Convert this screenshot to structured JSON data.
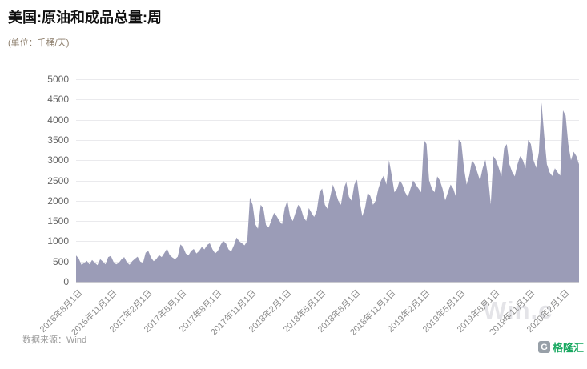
{
  "header": {
    "title": "美国:原油和成品总量:周",
    "unit": "(单位：千桶/天)"
  },
  "footer": {
    "source": "数据来源：Wind",
    "background_watermark": "Win.c",
    "logo_letter": "G",
    "logo_text": "格隆汇"
  },
  "colors": {
    "area": "#9b9cb7",
    "grid": "#eaeaed",
    "axis": "#c9c9cf",
    "logo_green": "#18a860"
  },
  "chart_data": {
    "type": "area",
    "title": "美国:原油和成品总量:周",
    "ylabel": "千桶/天",
    "ylim": [
      0,
      5000
    ],
    "grid": true,
    "y_ticks": [
      "5000",
      "4500",
      "4000",
      "3500",
      "3000",
      "2500",
      "2000",
      "1500",
      "1000",
      "500",
      "0"
    ],
    "x_tick_labels": [
      "2016年8月1日",
      "2016年11月1日",
      "2017年2月1日",
      "2017年5月1日",
      "2017年8月1日",
      "2017年11月1日",
      "2018年2月1日",
      "2018年5月1日",
      "2018年8月1日",
      "2018年11月1日",
      "2019年2月1日",
      "2019年5月1日",
      "2019年8月1日",
      "2019年11月1日",
      "2020年2月1日"
    ],
    "x_tick_interval_weeks": 13,
    "x_start": "2016-08-01",
    "x_step": "weekly",
    "values": [
      650,
      580,
      420,
      460,
      520,
      430,
      540,
      470,
      410,
      560,
      500,
      430,
      610,
      640,
      490,
      430,
      470,
      560,
      610,
      480,
      420,
      510,
      570,
      620,
      500,
      460,
      720,
      760,
      600,
      510,
      560,
      660,
      610,
      710,
      820,
      660,
      600,
      560,
      620,
      920,
      860,
      700,
      650,
      760,
      810,
      700,
      760,
      860,
      800,
      910,
      950,
      800,
      700,
      760,
      910,
      1010,
      950,
      800,
      750,
      900,
      1090,
      1000,
      950,
      900,
      1010,
      2080,
      1900,
      1420,
      1310,
      1900,
      1820,
      1400,
      1340,
      1520,
      1700,
      1620,
      1500,
      1420,
      1820,
      2000,
      1620,
      1500,
      1700,
      1900,
      1820,
      1600,
      1500,
      1820,
      1700,
      1600,
      1760,
      2220,
      2300,
      1900,
      1800,
      2100,
      2400,
      2210,
      2000,
      1900,
      2300,
      2460,
      2100,
      2000,
      2400,
      2520,
      2000,
      1620,
      1820,
      2200,
      2120,
      1900,
      2000,
      2300,
      2500,
      2620,
      2400,
      3000,
      2620,
      2210,
      2300,
      2510,
      2400,
      2210,
      2100,
      2300,
      2500,
      2400,
      2300,
      2210,
      3500,
      3400,
      2500,
      2300,
      2210,
      2600,
      2500,
      2300,
      2010,
      2210,
      2400,
      2300,
      2100,
      3510,
      3440,
      2800,
      2400,
      2620,
      3000,
      2900,
      2700,
      2500,
      2800,
      3010,
      2600,
      1910,
      3100,
      3000,
      2810,
      2600,
      3300,
      3400,
      2900,
      2710,
      2600,
      2900,
      3100,
      3000,
      2800,
      3500,
      3400,
      3000,
      2810,
      3200,
      4420,
      3600,
      2900,
      2700,
      2610,
      2800,
      2700,
      2620,
      4230,
      4100,
      3400,
      3000,
      3210,
      3100,
      2900
    ]
  }
}
